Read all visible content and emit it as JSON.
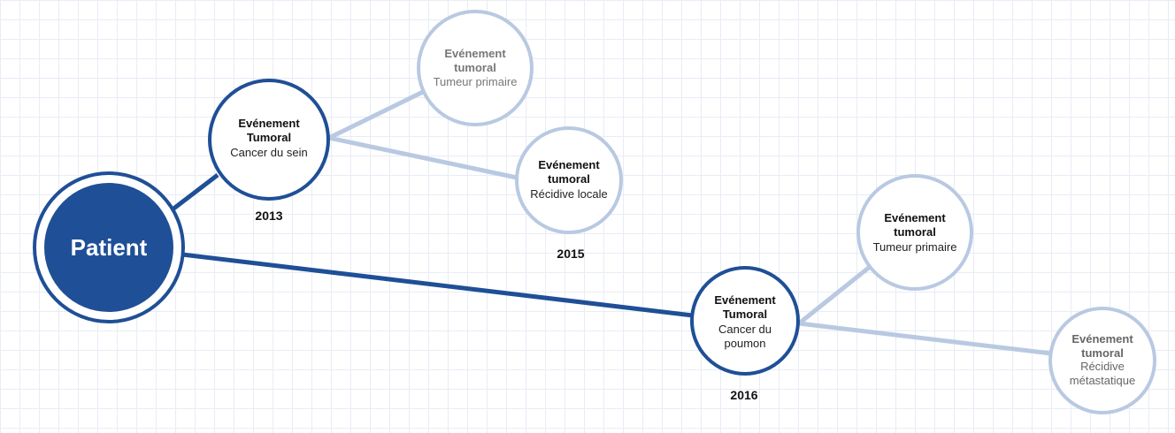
{
  "colors": {
    "primary": "#1f4f96",
    "light": "#b9c9e2",
    "grid": "#e8ecf5"
  },
  "patient": {
    "label": "Patient"
  },
  "events": {
    "sein": {
      "title1": "Evénement",
      "title2": "Tumoral",
      "sub1": "Cancer du sein",
      "sub2": "",
      "year": "2013"
    },
    "sein_primaire": {
      "title1": "Evénement",
      "title2": "tumoral",
      "sub1": "Tumeur primaire",
      "sub2": ""
    },
    "sein_recidive": {
      "title1": "Evénement",
      "title2": "tumoral",
      "sub1": "Récidive locale",
      "sub2": "",
      "year": "2015"
    },
    "poumon": {
      "title1": "Evénement",
      "title2": "Tumoral",
      "sub1": "Cancer du",
      "sub2": "poumon",
      "year": "2016"
    },
    "poumon_primaire": {
      "title1": "Evénement",
      "title2": "tumoral",
      "sub1": "Tumeur primaire",
      "sub2": ""
    },
    "poumon_metastase": {
      "title1": "Evénement",
      "title2": "tumoral",
      "sub1": "Récidive",
      "sub2": "métastatique"
    }
  }
}
